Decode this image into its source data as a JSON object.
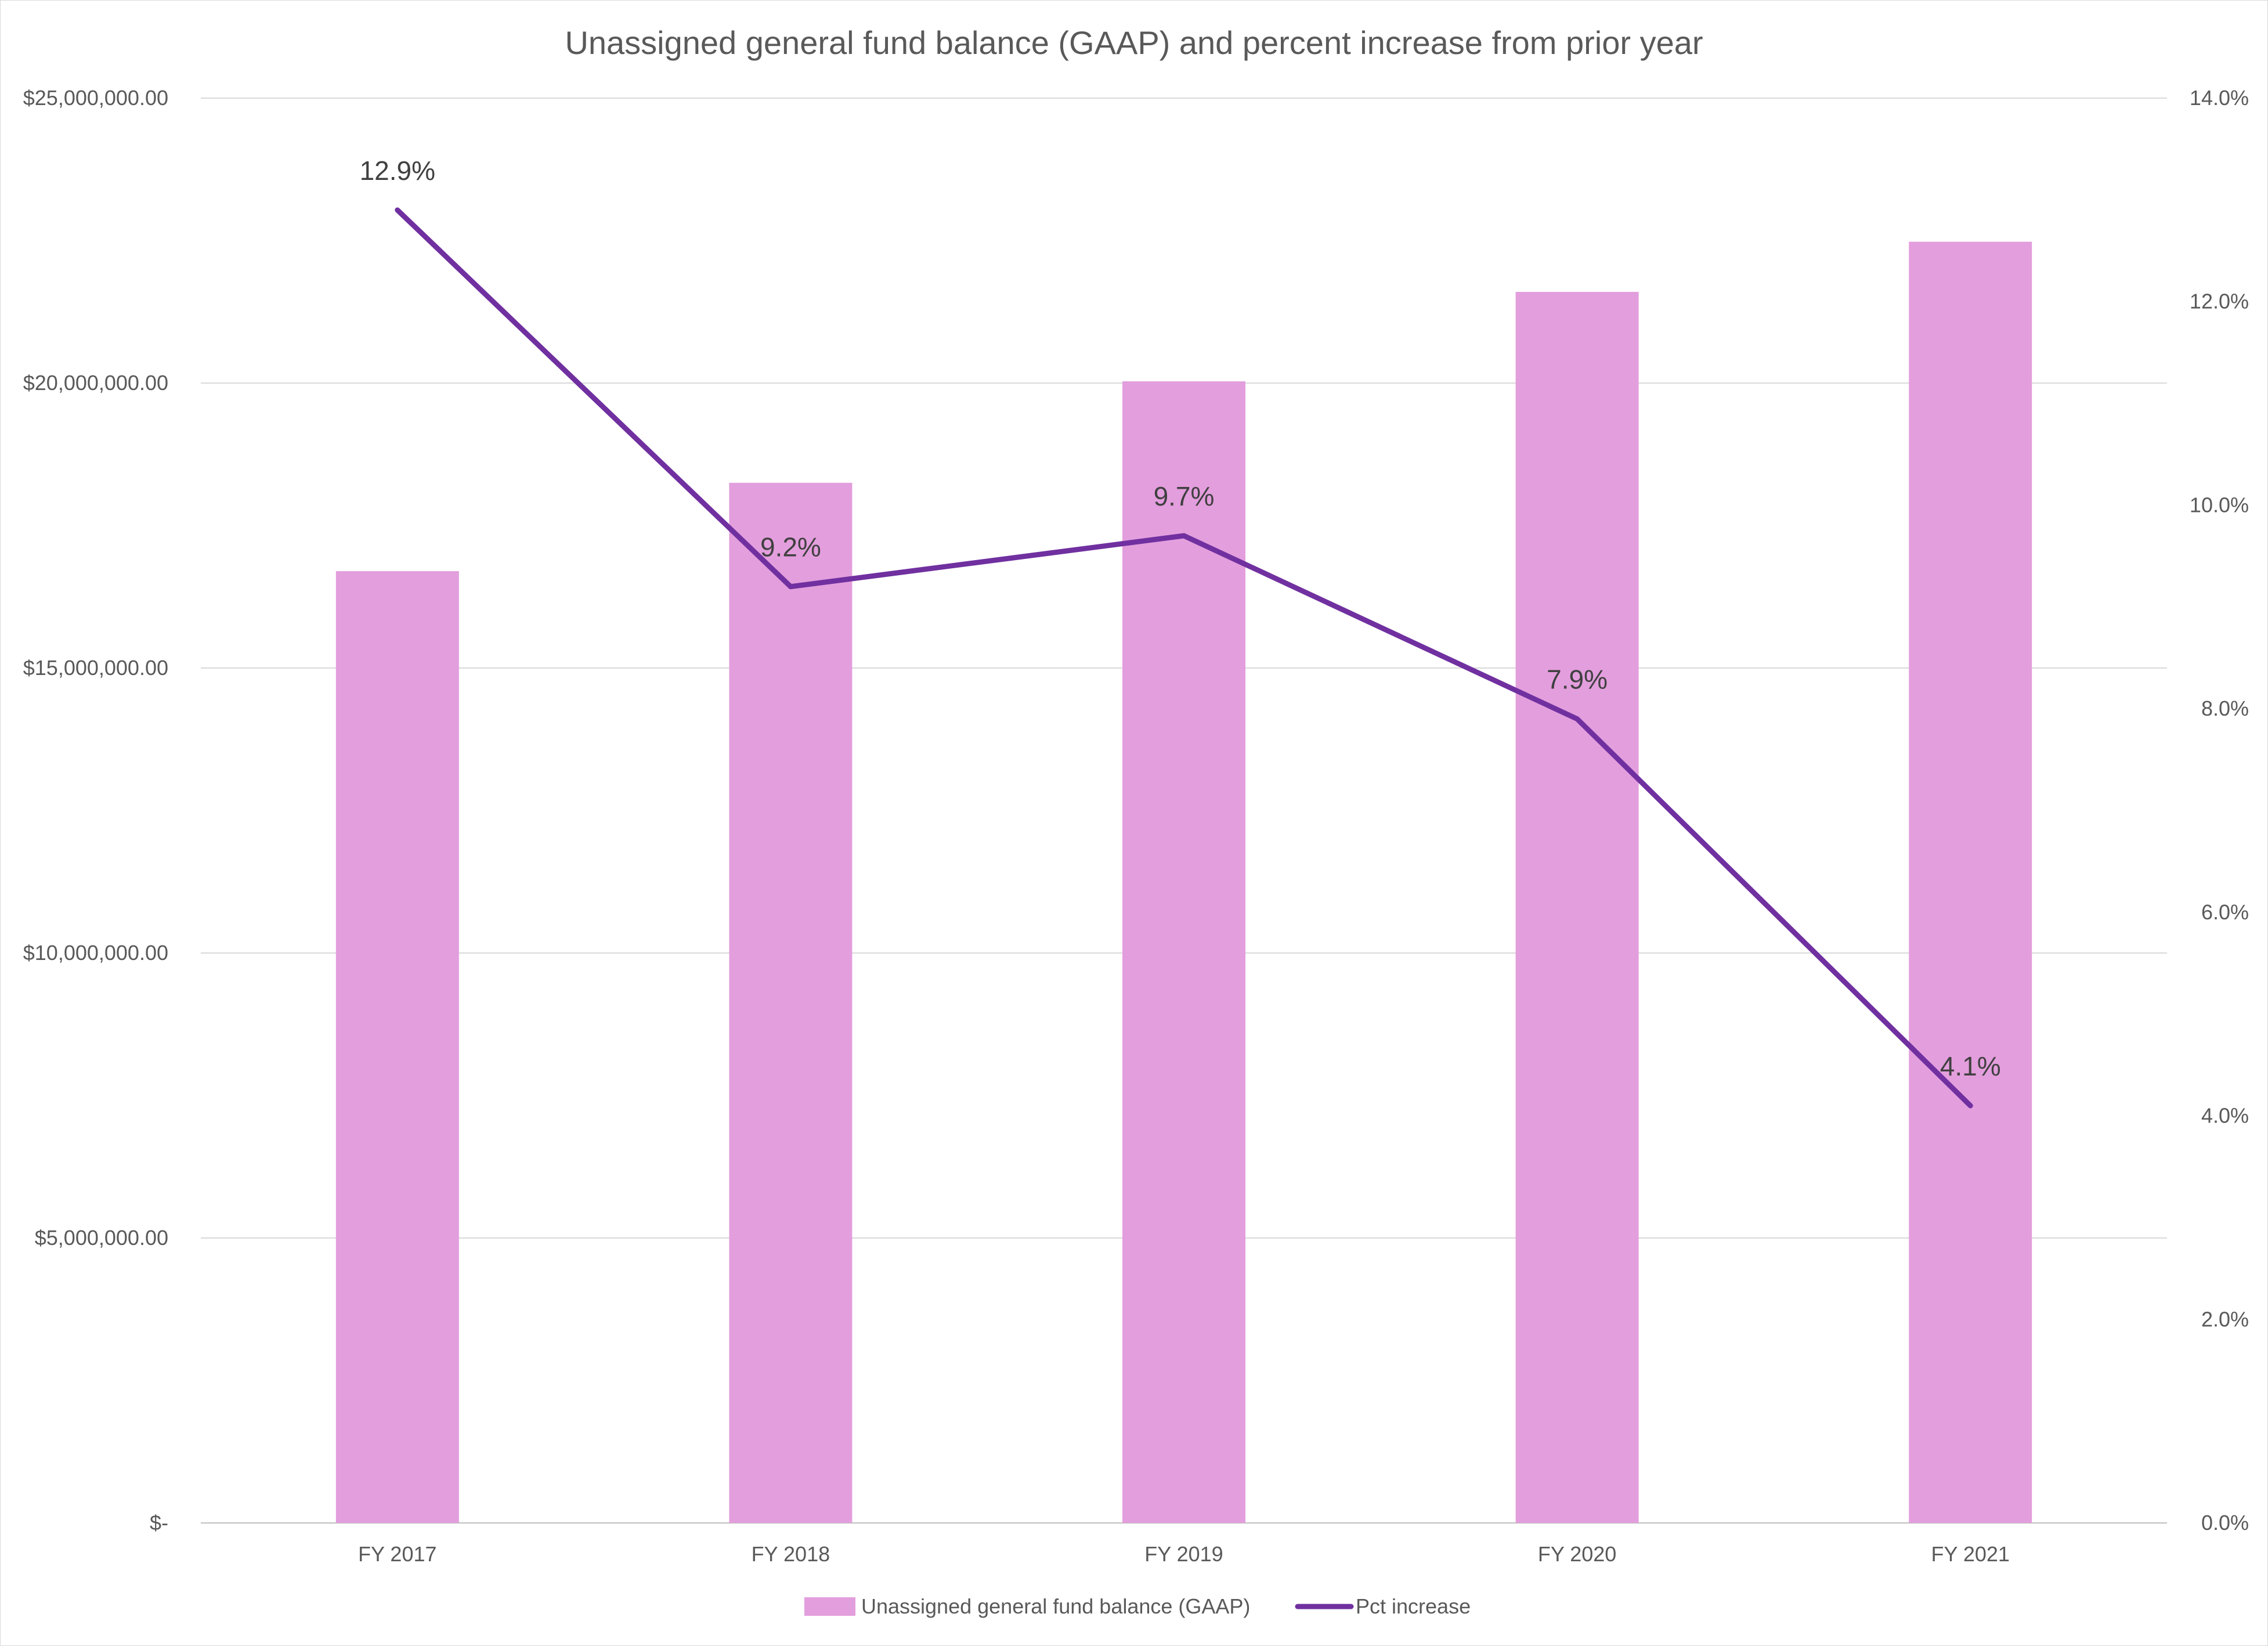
{
  "chart_data": {
    "type": "bar+line",
    "title": "Unassigned general fund balance (GAAP) and percent increase from prior year",
    "categories": [
      "FY 2017",
      "FY 2018",
      "FY 2019",
      "FY 2020",
      "FY 2021"
    ],
    "series": [
      {
        "name": "Unassigned general fund balance (GAAP)",
        "type": "bar",
        "axis": "left",
        "values": [
          16700000,
          18250000,
          20030000,
          21600000,
          22480000
        ],
        "color": "#E39EDD"
      },
      {
        "name": "Pct increase",
        "type": "line",
        "axis": "right",
        "values": [
          12.9,
          9.2,
          9.7,
          7.9,
          4.1
        ],
        "data_labels": [
          "12.9%",
          "9.2%",
          "9.7%",
          "7.9%",
          "4.1%"
        ],
        "color": "#7030A0"
      }
    ],
    "y_left": {
      "ylim": [
        0,
        25000000
      ],
      "ticks": [
        0,
        5000000,
        10000000,
        15000000,
        20000000,
        25000000
      ],
      "tick_labels": [
        "$-",
        "$5,000,000.00",
        "$10,000,000.00",
        "$15,000,000.00",
        "$20,000,000.00",
        "$25,000,000.00"
      ]
    },
    "y_right": {
      "ylim": [
        0,
        14
      ],
      "ticks": [
        0,
        2,
        4,
        6,
        8,
        10,
        12,
        14
      ],
      "tick_labels": [
        "0.0%",
        "2.0%",
        "4.0%",
        "6.0%",
        "8.0%",
        "10.0%",
        "12.0%",
        "14.0%"
      ]
    },
    "grid": true,
    "legend": "bottom"
  }
}
